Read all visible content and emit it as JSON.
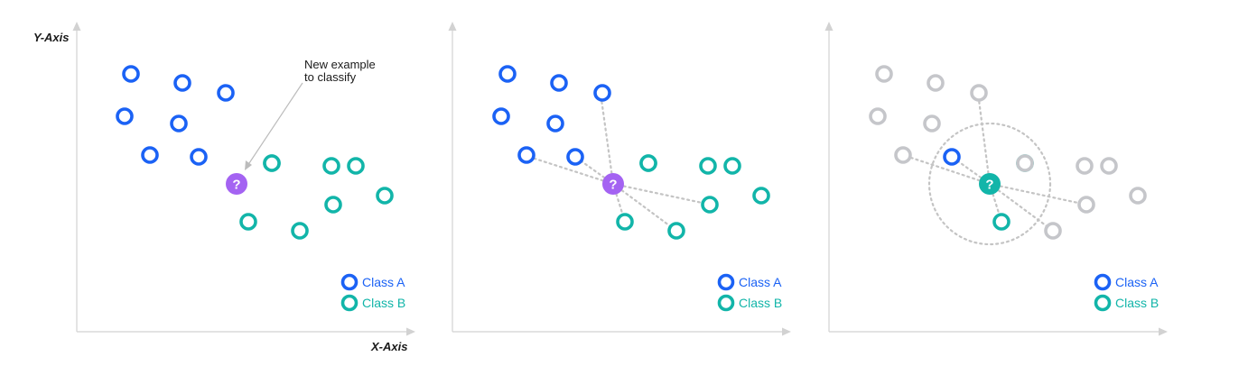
{
  "colors": {
    "class_a": "#1b62f5",
    "class_b": "#12b5a9",
    "query": "#a463f2",
    "inactive": "#c5c6ca"
  },
  "axes": {
    "y_label": "Y-Axis",
    "x_label": "X-Axis"
  },
  "annotation": {
    "line1": "New example",
    "line2": "to classify"
  },
  "legend": {
    "class_a": "Class A",
    "class_b": "Class B"
  },
  "query_symbol": "?",
  "panels": [
    {
      "query_color": "query",
      "points": [
        {
          "cls": "A",
          "state": "active"
        },
        {
          "cls": "A",
          "state": "active"
        },
        {
          "cls": "A",
          "state": "active"
        },
        {
          "cls": "A",
          "state": "active"
        },
        {
          "cls": "A",
          "state": "active"
        },
        {
          "cls": "A",
          "state": "active"
        },
        {
          "cls": "A",
          "state": "active"
        },
        {
          "cls": "B",
          "state": "active"
        },
        {
          "cls": "B",
          "state": "active"
        },
        {
          "cls": "B",
          "state": "active"
        },
        {
          "cls": "B",
          "state": "active"
        },
        {
          "cls": "B",
          "state": "active"
        },
        {
          "cls": "B",
          "state": "active"
        },
        {
          "cls": "B",
          "state": "active"
        },
        {
          "cls": "B",
          "state": "active"
        }
      ]
    },
    {
      "query_color": "query",
      "points": [
        {
          "cls": "A",
          "state": "active"
        },
        {
          "cls": "A",
          "state": "active"
        },
        {
          "cls": "A",
          "state": "active"
        },
        {
          "cls": "A",
          "state": "active"
        },
        {
          "cls": "A",
          "state": "active"
        },
        {
          "cls": "A",
          "state": "active"
        },
        {
          "cls": "A",
          "state": "active"
        },
        {
          "cls": "B",
          "state": "active"
        },
        {
          "cls": "B",
          "state": "active"
        },
        {
          "cls": "B",
          "state": "active"
        },
        {
          "cls": "B",
          "state": "active"
        },
        {
          "cls": "B",
          "state": "active"
        },
        {
          "cls": "B",
          "state": "active"
        },
        {
          "cls": "B",
          "state": "active"
        },
        {
          "cls": "B",
          "state": "active"
        }
      ]
    },
    {
      "query_color": "class_b",
      "points": [
        {
          "cls": "A",
          "state": "inactive"
        },
        {
          "cls": "A",
          "state": "inactive"
        },
        {
          "cls": "A",
          "state": "inactive"
        },
        {
          "cls": "A",
          "state": "inactive"
        },
        {
          "cls": "A",
          "state": "inactive"
        },
        {
          "cls": "A",
          "state": "inactive"
        },
        {
          "cls": "A",
          "state": "active"
        },
        {
          "cls": "B",
          "state": "active"
        },
        {
          "cls": "B",
          "state": "inactive"
        },
        {
          "cls": "B",
          "state": "inactive"
        },
        {
          "cls": "B",
          "state": "inactive"
        },
        {
          "cls": "B",
          "state": "active"
        },
        {
          "cls": "B",
          "state": "inactive"
        },
        {
          "cls": "B",
          "state": "inactive"
        },
        {
          "cls": "B",
          "state": "inactive"
        }
      ]
    }
  ]
}
